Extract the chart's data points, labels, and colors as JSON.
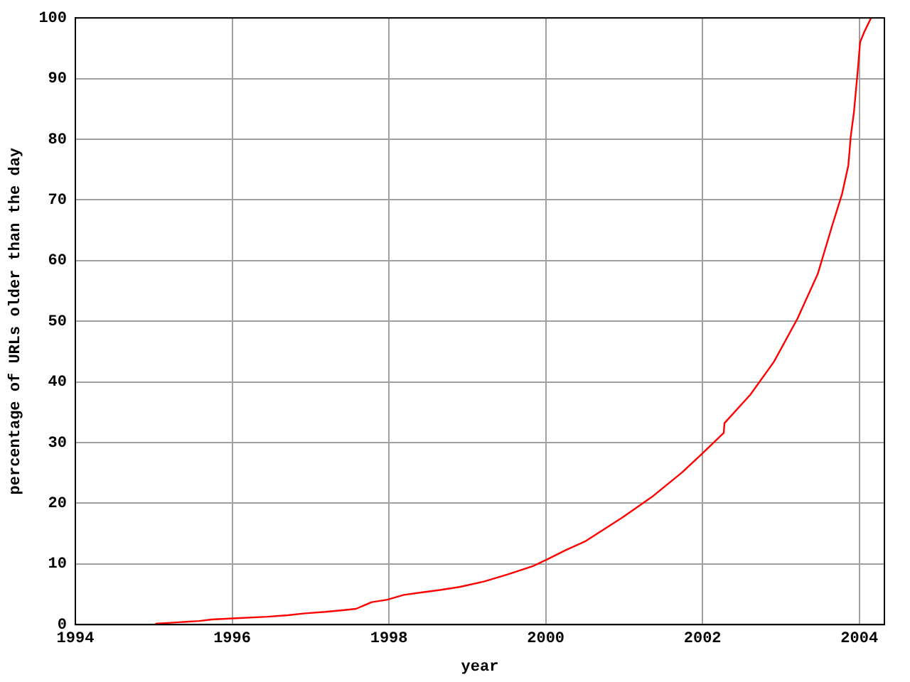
{
  "chart_data": {
    "type": "line",
    "xlabel": "year",
    "ylabel": "percentage of URLs older than the day",
    "x": [
      1995.02,
      1995.58,
      1995.74,
      1996.14,
      1996.45,
      1996.71,
      1996.93,
      1997.19,
      1997.43,
      1997.58,
      1997.78,
      1997.98,
      1998.19,
      1998.41,
      1998.65,
      1998.9,
      1999.21,
      1999.52,
      1999.83,
      2000.01,
      2000.26,
      2000.5,
      2000.97,
      2001.37,
      2001.74,
      2001.99,
      2002.27,
      2002.28,
      2002.61,
      2002.91,
      2003.21,
      2003.47,
      2003.65,
      2003.78,
      2003.86,
      2003.89,
      2003.93,
      2003.98,
      2004.01,
      2004.06,
      2004.15
    ],
    "series": [
      {
        "color": "#ff0000",
        "values": [
          0.15,
          0.6,
          0.85,
          1.1,
          1.3,
          1.55,
          1.85,
          2.1,
          2.4,
          2.6,
          3.7,
          4.1,
          4.9,
          5.3,
          5.7,
          6.2,
          7.1,
          8.3,
          9.6,
          10.7,
          12.3,
          13.7,
          17.6,
          21.2,
          25.1,
          28.1,
          31.6,
          33.2,
          37.9,
          43.3,
          50.4,
          57.8,
          65.6,
          71.0,
          75.7,
          80.4,
          84.3,
          91.3,
          96.0,
          97.6,
          100
        ]
      }
    ],
    "xlim": [
      1994,
      2004.32
    ],
    "xticks": [
      1994,
      1996,
      1998,
      2000,
      2002,
      2004
    ],
    "ylim": [
      0,
      100
    ],
    "yticks": [
      0,
      10,
      20,
      30,
      40,
      50,
      60,
      70,
      80,
      90,
      100
    ],
    "grid": true,
    "legend": false,
    "marker": "none",
    "line_style": "solid"
  }
}
